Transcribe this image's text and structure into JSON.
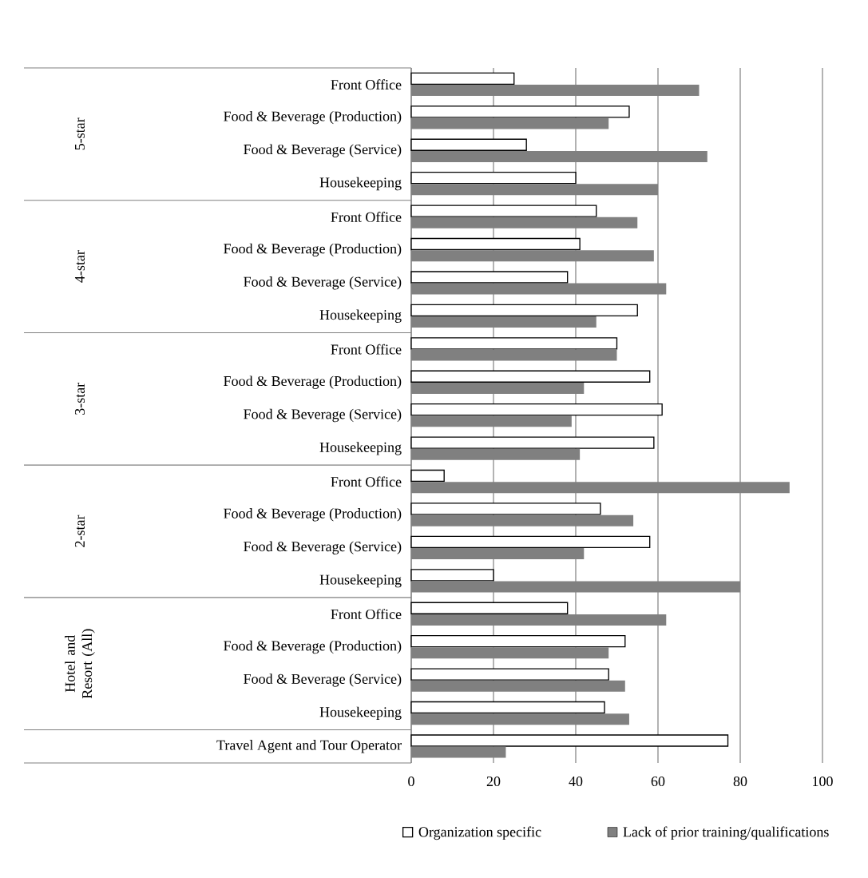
{
  "chart_data": {
    "type": "bar",
    "orientation": "horizontal",
    "categories": [
      "Front Office",
      "Food & Beverage (Production)",
      "Food & Beverage (Service)",
      "Housekeeping",
      "Front Office",
      "Food & Beverage (Production)",
      "Food & Beverage (Service)",
      "Housekeeping",
      "Front Office",
      "Food & Beverage (Production)",
      "Food & Beverage (Service)",
      "Housekeeping",
      "Front Office",
      "Food & Beverage (Production)",
      "Food & Beverage (Service)",
      "Housekeeping",
      "Front Office",
      "Food & Beverage (Production)",
      "Food & Beverage (Service)",
      "Housekeeping",
      "Travel Agent and Tour Operator"
    ],
    "series": [
      {
        "name": "Organization specific",
        "color": "#ffffff",
        "values": [
          25,
          53,
          28,
          40,
          45,
          41,
          38,
          55,
          50,
          58,
          61,
          59,
          8,
          46,
          58,
          20,
          38,
          52,
          48,
          47,
          77
        ]
      },
      {
        "name": "Lack of prior training/qualifications",
        "color": "#808080",
        "values": [
          70,
          48,
          72,
          60,
          55,
          59,
          62,
          45,
          50,
          42,
          39,
          41,
          92,
          54,
          42,
          80,
          62,
          48,
          52,
          53,
          23
        ]
      }
    ],
    "annotations": [
      "5-star",
      "4-star",
      "3-star",
      "2-star",
      "Hotel and Resort (All)"
    ],
    "xlim": [
      0,
      100
    ],
    "xticks": [
      0,
      20,
      40,
      60,
      80,
      100
    ],
    "grid": "x",
    "legend": "bottom"
  }
}
